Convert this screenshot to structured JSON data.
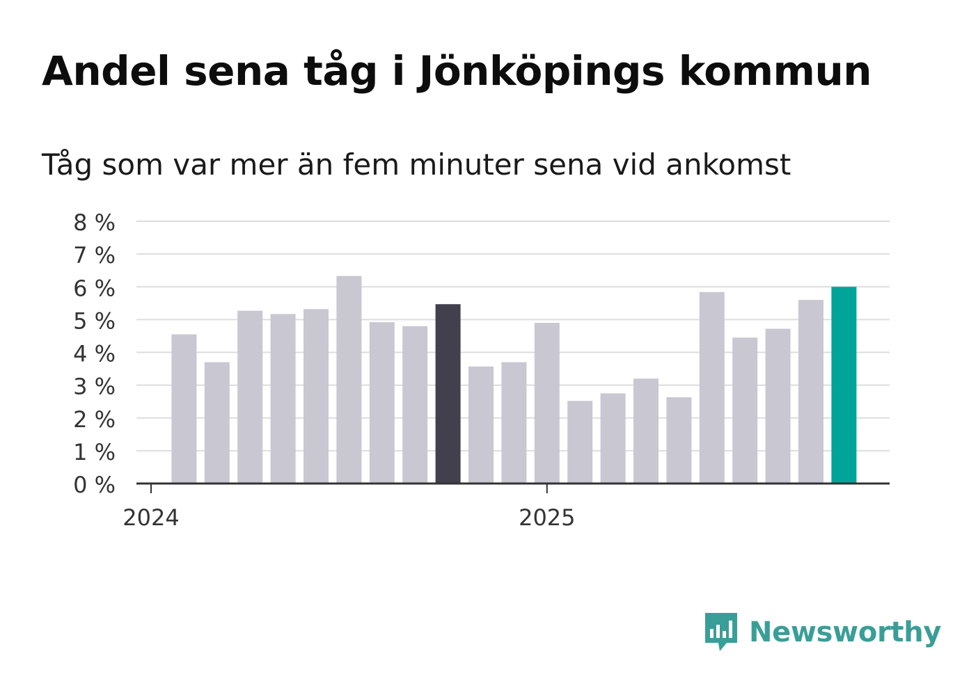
{
  "header": {
    "title": "Andel sena tåg i Jönköpings kommun",
    "subtitle": "Tåg som var mer än fem minuter sena vid ankomst"
  },
  "brand": {
    "name": "Newsworthy",
    "icon": "newsworthy-logo-icon",
    "color": "#3a9e98"
  },
  "colors": {
    "default_bar": "#c8c7d2",
    "highlight_bar": "#42404c",
    "latest_bar": "#00a499",
    "grid": "#dddddd",
    "axis": "#333333"
  },
  "chart_data": {
    "type": "bar",
    "title": "Andel sena tåg i Jönköpings kommun",
    "subtitle": "Tåg som var mer än fem minuter sena vid ankomst",
    "xlabel": "",
    "ylabel": "",
    "ylim": [
      0,
      8
    ],
    "yticks": [
      0,
      1,
      2,
      3,
      4,
      5,
      6,
      7,
      8
    ],
    "ytick_labels": [
      "0 %",
      "1 %",
      "2 %",
      "3 %",
      "4 %",
      "5 %",
      "6 %",
      "7 %",
      "8 %"
    ],
    "x_tick_labels": [
      {
        "label": "2024",
        "index": 0
      },
      {
        "label": "2025",
        "index": 12
      }
    ],
    "grid": true,
    "categories": [
      "2024-01",
      "2024-02",
      "2024-03",
      "2024-04",
      "2024-05",
      "2024-06",
      "2024-07",
      "2024-08",
      "2024-09",
      "2024-10",
      "2024-11",
      "2024-12",
      "2025-01",
      "2025-02",
      "2025-03",
      "2025-04",
      "2025-05",
      "2025-06",
      "2025-07",
      "2025-08",
      "2025-09",
      "2025-10"
    ],
    "values": [
      null,
      4.55,
      3.7,
      5.27,
      5.17,
      5.32,
      6.33,
      4.92,
      4.8,
      5.47,
      3.57,
      3.7,
      4.9,
      2.52,
      2.75,
      3.2,
      2.63,
      5.84,
      4.45,
      4.72,
      5.6,
      6.0
    ],
    "highlight": [
      {
        "index": 9,
        "color": "#42404c"
      },
      {
        "index": 21,
        "color": "#00a499"
      }
    ]
  }
}
